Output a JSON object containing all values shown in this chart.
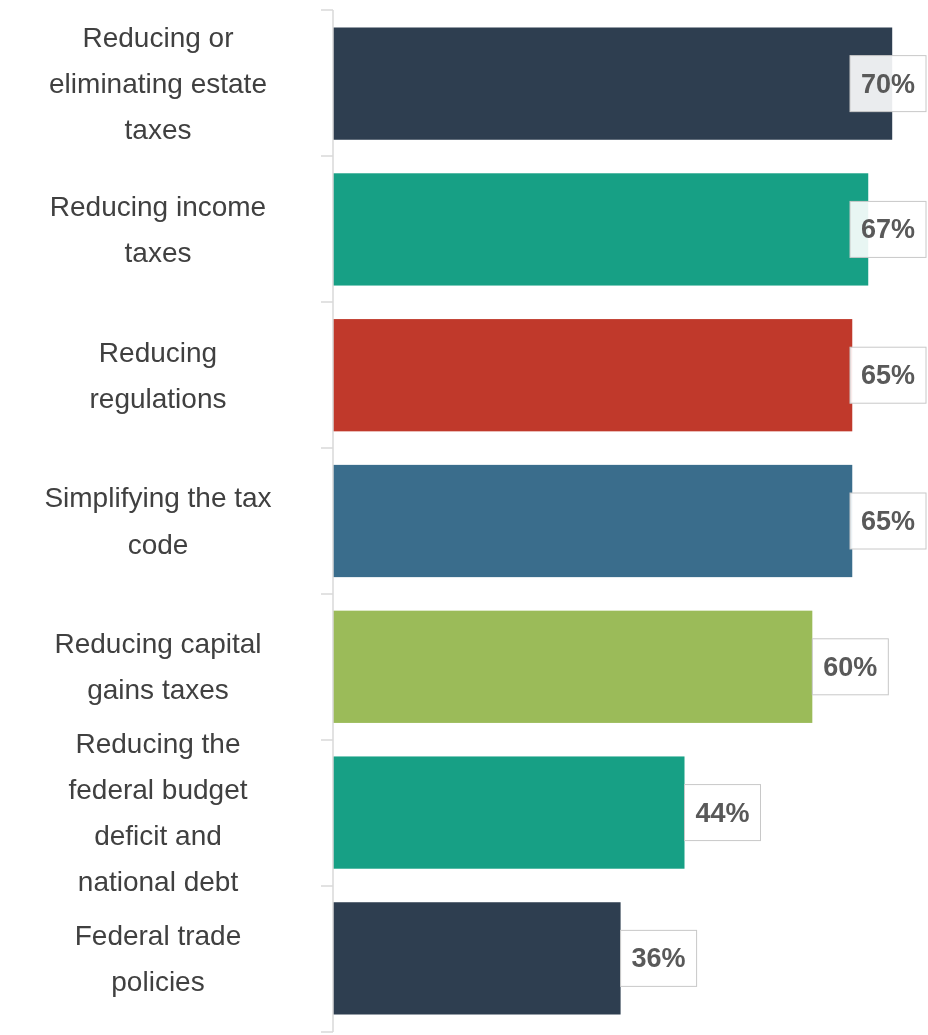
{
  "chart_data": {
    "type": "bar",
    "orientation": "horizontal",
    "categories": [
      "Reducing or eliminating estate taxes",
      "Reducing income taxes",
      "Reducing regulations",
      "Simplifying the tax code",
      "Reducing capital gains taxes",
      "Reducing the federal budget deficit and national debt",
      "Federal trade policies"
    ],
    "values": [
      70,
      67,
      65,
      65,
      60,
      44,
      36
    ],
    "colors": [
      "#2e3e50",
      "#17a085",
      "#c0392b",
      "#3a6d8c",
      "#9bbb59",
      "#17a085",
      "#2e3e50"
    ],
    "value_labels": [
      "70%",
      "67%",
      "65%",
      "65%",
      "60%",
      "44%",
      "36%"
    ],
    "tick_labels": "y"
  }
}
